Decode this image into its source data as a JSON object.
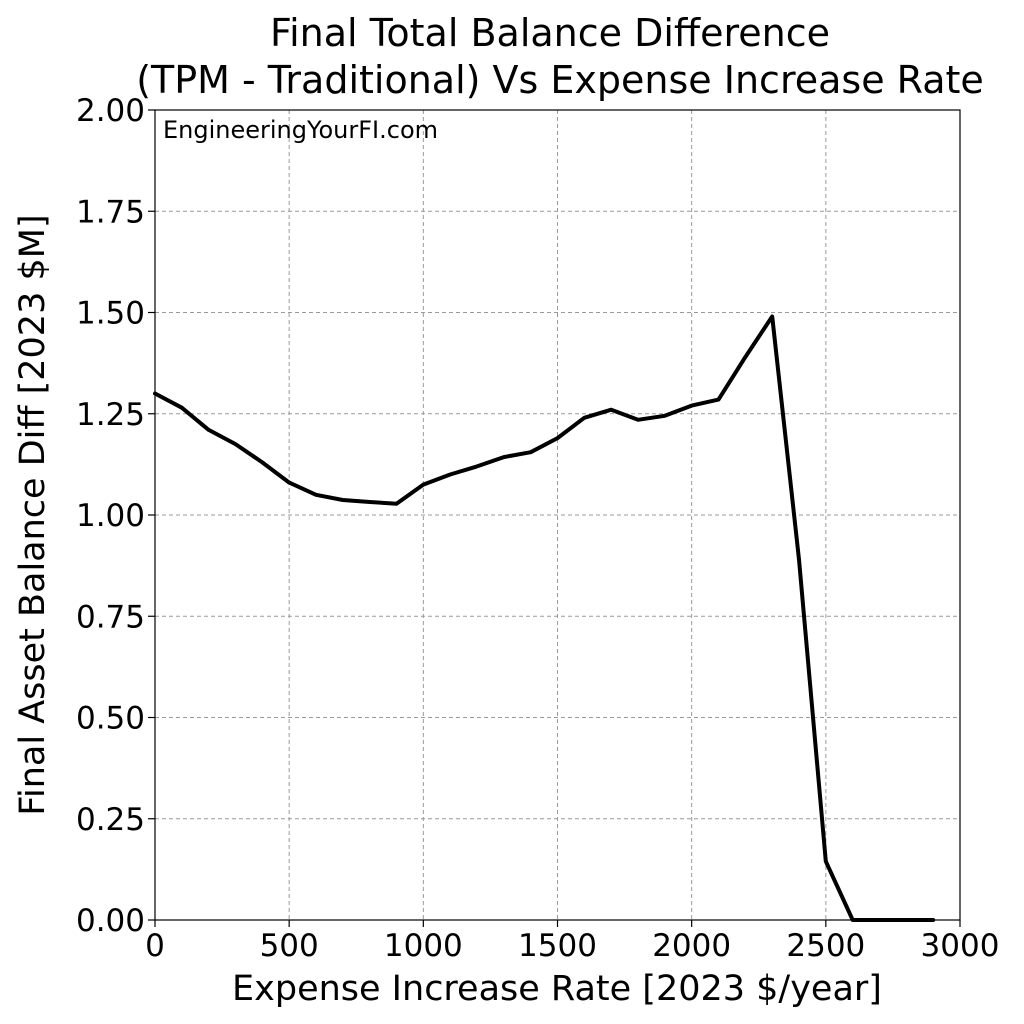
{
  "chart_data": {
    "type": "line",
    "title": "Final Total Balance Difference",
    "subtitle": "(TPM - Traditional) Vs Expense Increase Rate",
    "xlabel": "Expense Increase Rate [2023 $/year]",
    "ylabel": "Final Asset Balance Diff [2023 $M]",
    "annotation": "EngineeringYourFI.com",
    "xlim": [
      0,
      3000
    ],
    "ylim": [
      0,
      2.0
    ],
    "x_ticks": [
      0,
      500,
      1000,
      1500,
      2000,
      2500,
      3000
    ],
    "x_tick_labels": [
      "0",
      "500",
      "1000",
      "1500",
      "2000",
      "2500",
      "3000"
    ],
    "y_ticks": [
      0,
      0.25,
      0.5,
      0.75,
      1.0,
      1.25,
      1.5,
      1.75,
      2.0
    ],
    "y_tick_labels": [
      "0.00",
      "0.25",
      "0.50",
      "0.75",
      "1.00",
      "1.25",
      "1.50",
      "1.75",
      "2.00"
    ],
    "grid": true,
    "line_color": "#000000",
    "series": [
      {
        "x": [
          0,
          100,
          200,
          300,
          400,
          500,
          600,
          700,
          800,
          900,
          1000,
          1100,
          1200,
          1300,
          1400,
          1500,
          1600,
          1700,
          1800,
          1900,
          2000,
          2100,
          2200,
          2300,
          2400,
          2500,
          2600,
          2700,
          2800,
          2900
        ],
        "values": [
          1.3,
          1.265,
          1.21,
          1.175,
          1.13,
          1.08,
          1.05,
          1.037,
          1.032,
          1.028,
          1.075,
          1.1,
          1.12,
          1.143,
          1.155,
          1.19,
          1.24,
          1.26,
          1.235,
          1.245,
          1.27,
          1.285,
          1.39,
          1.49,
          0.89,
          0.145,
          0.0,
          0.0,
          0.0,
          0.0
        ]
      }
    ]
  }
}
